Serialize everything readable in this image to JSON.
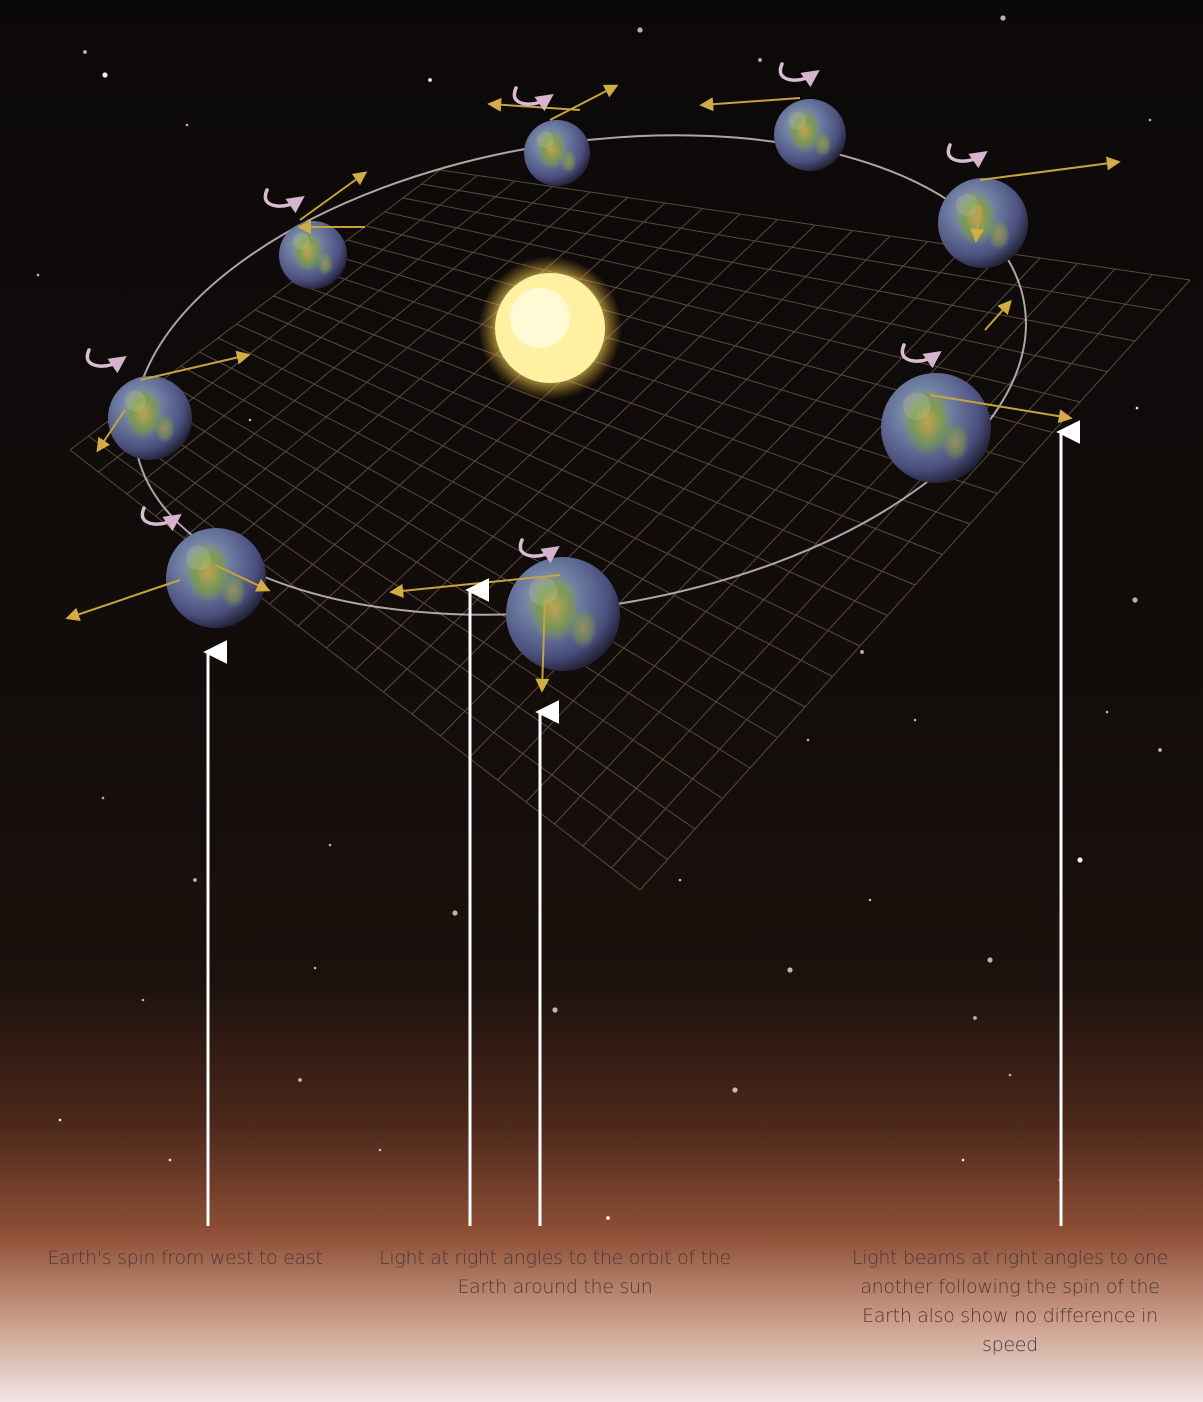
{
  "captions": {
    "spin": "Earth's spin from west to east",
    "orbit": "Light at right angles to the orbit of the Earth around the sun",
    "beams": "Light beams at right angles to one another following the spin of the Earth also show no difference in speed"
  },
  "colors": {
    "space": "#0c0908",
    "horizon": "#b26a4c",
    "sun": "#fff3a0",
    "light_beam": "#c8a23c",
    "spin_arrow": "#c7a4c2",
    "pointer": "#ffffff",
    "orbit_line": "#c9bcc2",
    "grid": "#8a6f5c"
  },
  "icons": {
    "sun": "sun-icon",
    "earth": "earth-globe-icon",
    "spin": "curved-spin-arrow-icon",
    "beam": "light-beam-arrow-icon"
  }
}
